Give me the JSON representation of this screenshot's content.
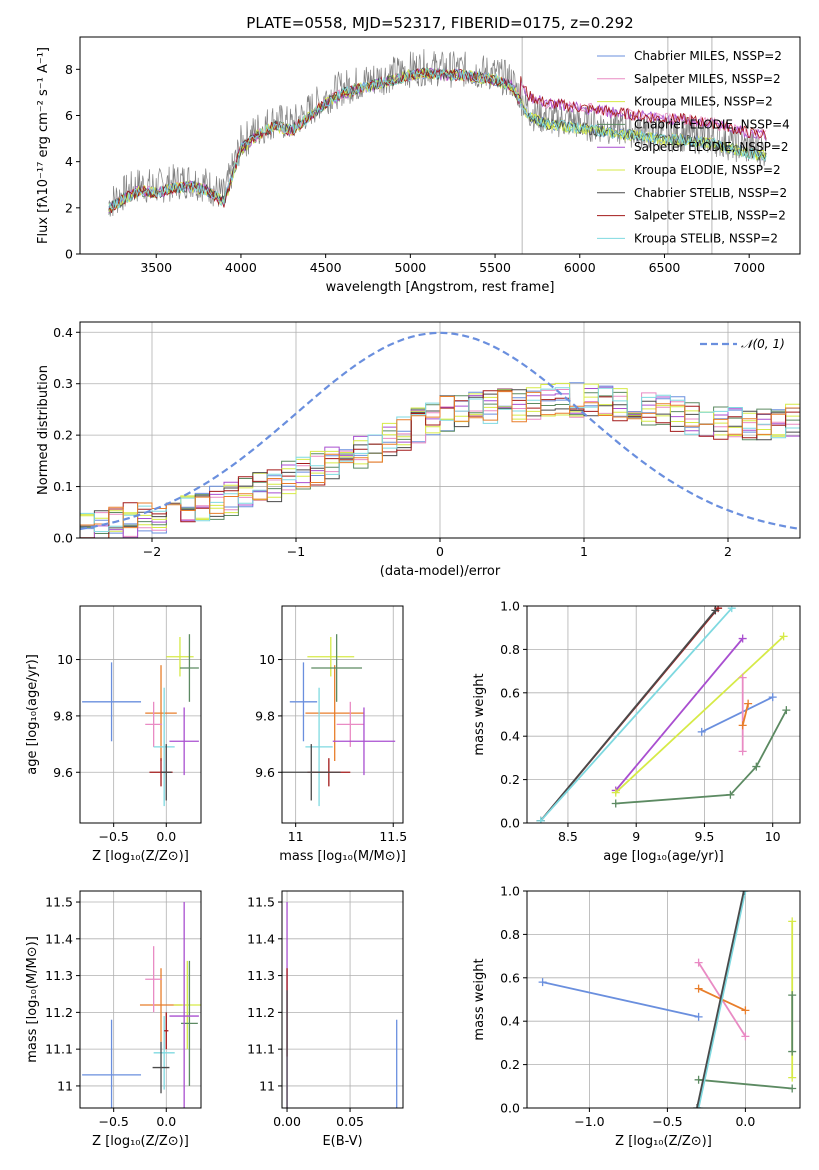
{
  "figure": {
    "title": "PLATE=0558, MJD=52317, FIBERID=0175, z=0.292"
  },
  "chart_data": [
    {
      "panel": "spectrum",
      "type": "line",
      "xlabel": "wavelength [Angstrom, rest frame]",
      "ylabel": "Flux [fλ10⁻¹⁷ erg cm⁻² s⁻¹ A⁻¹]",
      "xlim": [
        3050,
        7300
      ],
      "ylim": [
        0,
        9.4
      ],
      "xticks": [
        3500,
        4000,
        4500,
        5000,
        5500,
        6000,
        6500,
        7000
      ],
      "yticks": [
        0,
        2,
        4,
        6,
        8
      ],
      "grid": false,
      "legend_position": "top-right",
      "legend": [
        "Chabrier MILES, NSSP=2",
        "Salpeter MILES, NSSP=2",
        "Kroupa MILES, NSSP=2",
        "Chabrier ELODIE, NSSP=4",
        "Salpeter ELODIE, NSSP=2",
        "Kroupa ELODIE, NSSP=2",
        "Chabrier STELIB, NSSP=2",
        "Salpeter STELIB, NSSP=2",
        "Kroupa STELIB, NSSP=2"
      ],
      "vlines": [
        5660,
        6520,
        6780
      ],
      "data_envelope": {
        "x": [
          3220,
          3300,
          3400,
          3500,
          3600,
          3700,
          3800,
          3900,
          4000,
          4100,
          4200,
          4300,
          4400,
          4500,
          4600,
          4700,
          4800,
          4900,
          5000,
          5100,
          5200,
          5300,
          5400,
          5500,
          5600,
          5700,
          5800,
          5900,
          6000,
          6100,
          6200,
          6300,
          6400,
          6500,
          6600,
          6700,
          6800,
          6900,
          7000,
          7100
        ],
        "y": [
          2.2,
          2.6,
          3.0,
          2.9,
          3.1,
          3.2,
          3.0,
          2.5,
          4.8,
          5.4,
          5.8,
          5.6,
          6.2,
          6.8,
          7.2,
          7.4,
          7.6,
          7.8,
          8.0,
          8.1,
          8.0,
          8.0,
          7.9,
          7.8,
          7.5,
          6.2,
          5.9,
          5.8,
          5.7,
          5.6,
          5.5,
          5.4,
          5.3,
          5.2,
          5.2,
          5.1,
          5.0,
          4.8,
          4.6,
          4.5
        ]
      }
    },
    {
      "panel": "residuals",
      "type": "line",
      "xlabel": "(data-model)/error",
      "ylabel": "Normed distribution",
      "xlim": [
        -2.5,
        2.5
      ],
      "ylim": [
        0,
        0.42
      ],
      "xticks": [
        -2,
        -1,
        0,
        1,
        2
      ],
      "yticks": [
        0.0,
        0.1,
        0.2,
        0.3,
        0.4
      ],
      "grid": true,
      "legend": [
        "𝒩(0, 1)"
      ],
      "legend_position": "top-right",
      "gaussian": {
        "mu": 0,
        "sigma": 1
      },
      "histogram_bins": {
        "x": [
          -2.5,
          -2.0,
          -1.5,
          -1.0,
          -0.5,
          0.0,
          0.5,
          1.0,
          1.5,
          2.0,
          2.5
        ],
        "y": [
          0.02,
          0.04,
          0.07,
          0.12,
          0.17,
          0.24,
          0.26,
          0.27,
          0.25,
          0.22,
          0.23
        ]
      }
    },
    {
      "panel": "age-vs-Z",
      "type": "scatter",
      "xlabel": "Z [log₁₀(Z/Z⊙)]",
      "ylabel": "age  [log₁₀(age/yr)]",
      "xlim": [
        -0.82,
        0.33
      ],
      "ylim": [
        9.42,
        10.19
      ],
      "xticks": [
        -0.5,
        0.0
      ],
      "xticklabels": [
        "−0.5",
        "0.0"
      ],
      "yticks": [
        9.6,
        9.8,
        10.0
      ],
      "grid": true,
      "points": [
        {
          "x": -0.52,
          "y": 9.85,
          "xerr": 0.28,
          "yerr": 0.14,
          "color": "#6a8fde"
        },
        {
          "x": -0.05,
          "y": 9.81,
          "xerr": 0.15,
          "yerr": 0.17,
          "color": "#e87e2b"
        },
        {
          "x": -0.12,
          "y": 9.77,
          "xerr": 0.08,
          "yerr": 0.08,
          "color": "#e98bc4"
        },
        {
          "x": 0.13,
          "y": 10.01,
          "xerr": 0.13,
          "yerr": 0.07,
          "color": "#d6ea47"
        },
        {
          "x": 0.22,
          "y": 9.97,
          "xerr": 0.09,
          "yerr": 0.12,
          "color": "#5c8a62"
        },
        {
          "x": 0.17,
          "y": 9.71,
          "xerr": 0.14,
          "yerr": 0.12,
          "color": "#a94fd0"
        },
        {
          "x": -0.02,
          "y": 9.69,
          "xerr": 0.1,
          "yerr": 0.21,
          "color": "#7fd9e0"
        },
        {
          "x": -0.05,
          "y": 9.6,
          "xerr": 0.11,
          "yerr": 0.05,
          "color": "#a31a1a"
        },
        {
          "x": 0.0,
          "y": 9.6,
          "xerr": 0.05,
          "yerr": 0.1,
          "color": "#4a4a4a"
        }
      ]
    },
    {
      "panel": "age-vs-mass",
      "type": "scatter",
      "xlabel": "mass [log₁₀(M/M⊙)]",
      "ylabel": "",
      "xlim": [
        10.93,
        11.55
      ],
      "ylim": [
        9.42,
        10.19
      ],
      "xticks": [
        11.0,
        11.5
      ],
      "yticks": [
        9.6,
        9.8,
        10.0
      ],
      "grid": true,
      "points": [
        {
          "x": 11.04,
          "y": 9.85,
          "xerr": 0.07,
          "yerr": 0.14,
          "color": "#6a8fde"
        },
        {
          "x": 11.2,
          "y": 9.81,
          "xerr": 0.15,
          "yerr": 0.17,
          "color": "#e87e2b"
        },
        {
          "x": 11.28,
          "y": 9.77,
          "xerr": 0.07,
          "yerr": 0.08,
          "color": "#e98bc4"
        },
        {
          "x": 11.18,
          "y": 10.01,
          "xerr": 0.12,
          "yerr": 0.07,
          "color": "#d6ea47"
        },
        {
          "x": 11.21,
          "y": 9.97,
          "xerr": 0.13,
          "yerr": 0.12,
          "color": "#5c8a62"
        },
        {
          "x": 11.35,
          "y": 9.71,
          "xerr": 0.16,
          "yerr": 0.12,
          "color": "#a94fd0"
        },
        {
          "x": 11.12,
          "y": 9.69,
          "xerr": 0.07,
          "yerr": 0.21,
          "color": "#7fd9e0"
        },
        {
          "x": 11.17,
          "y": 9.6,
          "xerr": 0.11,
          "yerr": 0.05,
          "color": "#a31a1a"
        },
        {
          "x": 11.08,
          "y": 9.6,
          "xerr": 0.15,
          "yerr": 0.1,
          "color": "#4a4a4a"
        }
      ]
    },
    {
      "panel": "mass-weight-vs-age",
      "type": "line",
      "xlabel": "age  [log₁₀(age/yr)]",
      "ylabel": "mass weight",
      "xlim": [
        8.2,
        10.2
      ],
      "ylim": [
        0,
        1
      ],
      "xticks": [
        8.5,
        9.0,
        9.5,
        10.0
      ],
      "yticks": [
        0.0,
        0.2,
        0.4,
        0.6,
        0.8,
        1.0
      ],
      "grid": true,
      "series": [
        {
          "color": "#a31a1a",
          "x": [
            8.3,
            9.6
          ],
          "y": [
            0.01,
            0.99
          ]
        },
        {
          "color": "#4a4a4a",
          "x": [
            8.3,
            9.58
          ],
          "y": [
            0.01,
            0.98
          ]
        },
        {
          "color": "#7fd9e0",
          "x": [
            8.3,
            9.7
          ],
          "y": [
            0.01,
            0.99
          ]
        },
        {
          "color": "#a94fd0",
          "x": [
            8.85,
            9.78
          ],
          "y": [
            0.15,
            0.85
          ]
        },
        {
          "color": "#d6ea47",
          "x": [
            8.85,
            10.08
          ],
          "y": [
            0.14,
            0.86
          ]
        },
        {
          "color": "#5c8a62",
          "x": [
            8.85,
            9.69,
            9.88,
            10.1
          ],
          "y": [
            0.09,
            0.13,
            0.26,
            0.52
          ]
        },
        {
          "color": "#6a8fde",
          "x": [
            9.48,
            10.0
          ],
          "y": [
            0.42,
            0.58
          ]
        },
        {
          "color": "#e98bc4",
          "x": [
            9.78,
            9.78
          ],
          "y": [
            0.33,
            0.67
          ]
        },
        {
          "color": "#e87e2b",
          "x": [
            9.78,
            9.82
          ],
          "y": [
            0.45,
            0.55
          ]
        }
      ]
    },
    {
      "panel": "mass-vs-Z",
      "type": "scatter",
      "xlabel": "Z [log₁₀(Z/Z⊙)]",
      "ylabel": "mass [log₁₀(M/M⊙)]",
      "xlim": [
        -0.82,
        0.33
      ],
      "ylim": [
        10.94,
        11.53
      ],
      "xticks": [
        -0.5,
        0.0
      ],
      "xticklabels": [
        "−0.5",
        "0.0"
      ],
      "yticks": [
        11.0,
        11.1,
        11.2,
        11.3,
        11.4,
        11.5
      ],
      "grid": true,
      "points": [
        {
          "x": -0.52,
          "y": 11.03,
          "xerr": 0.28,
          "yerr": 0.15,
          "color": "#6a8fde"
        },
        {
          "x": -0.05,
          "y": 11.22,
          "xerr": 0.2,
          "yerr": 0.1,
          "color": "#e87e2b"
        },
        {
          "x": -0.12,
          "y": 11.29,
          "xerr": 0.08,
          "yerr": 0.09,
          "color": "#e98bc4"
        },
        {
          "x": 0.2,
          "y": 11.22,
          "xerr": 0.13,
          "yerr": 0.12,
          "color": "#d6ea47"
        },
        {
          "x": 0.22,
          "y": 11.17,
          "xerr": 0.08,
          "yerr": 0.17,
          "color": "#5c8a62"
        },
        {
          "x": 0.17,
          "y": 11.19,
          "xerr": 0.14,
          "yerr": 0.31,
          "color": "#a94fd0"
        },
        {
          "x": -0.02,
          "y": 11.09,
          "xerr": 0.1,
          "yerr": 0.1,
          "color": "#7fd9e0"
        },
        {
          "x": 0.0,
          "y": 11.15,
          "xerr": 0.02,
          "yerr": 0.05,
          "color": "#a31a1a"
        },
        {
          "x": -0.05,
          "y": 11.05,
          "xerr": 0.08,
          "yerr": 0.07,
          "color": "#4a4a4a"
        }
      ]
    },
    {
      "panel": "mass-vs-EBV",
      "type": "scatter",
      "xlabel": "E(B-V)",
      "ylabel": "",
      "xlim": [
        -0.004,
        0.092
      ],
      "ylim": [
        10.94,
        11.53
      ],
      "xticks": [
        0.0,
        0.05
      ],
      "xticklabels": [
        "0.00",
        "0.05"
      ],
      "yticks": [
        11.0,
        11.1,
        11.2,
        11.3,
        11.4,
        11.5
      ],
      "grid": true,
      "points": [
        {
          "x": 0.087,
          "y": 11.06,
          "xerr": 0.0,
          "yerr": 0.12,
          "color": "#6a8fde"
        },
        {
          "x": 0.0,
          "y": 11.22,
          "xerr": 0.0,
          "yerr": 0.28,
          "color": "#a94fd0"
        },
        {
          "x": 0.0,
          "y": 11.2,
          "xerr": 0.0,
          "yerr": 0.12,
          "color": "#a31a1a"
        },
        {
          "x": 0.0,
          "y": 11.1,
          "xerr": 0.0,
          "yerr": 0.16,
          "color": "#4a4a4a"
        }
      ]
    },
    {
      "panel": "mass-weight-vs-Z",
      "type": "line",
      "xlabel": "Z [log₁₀(Z/Z⊙)]",
      "ylabel": "mass weight",
      "xlim": [
        -1.4,
        0.35
      ],
      "ylim": [
        0,
        1
      ],
      "xticks": [
        -1.0,
        -0.5,
        0.0
      ],
      "xticklabels": [
        "−1.0",
        "−0.5",
        "0.0"
      ],
      "yticks": [
        0.0,
        0.2,
        0.4,
        0.6,
        0.8,
        1.0
      ],
      "grid": true,
      "series": [
        {
          "color": "#6a8fde",
          "x": [
            -1.3,
            -0.3
          ],
          "y": [
            0.58,
            0.42
          ]
        },
        {
          "color": "#e98bc4",
          "x": [
            -0.3,
            0.0
          ],
          "y": [
            0.67,
            0.33
          ]
        },
        {
          "color": "#e87e2b",
          "x": [
            -0.3,
            0.0
          ],
          "y": [
            0.55,
            0.45
          ]
        },
        {
          "color": "#5c8a62",
          "x": [
            -0.3,
            0.3
          ],
          "y": [
            0.13,
            0.09
          ]
        },
        {
          "color": "#7fd9e0",
          "x": [
            -0.3,
            0.0
          ],
          "y": [
            0.0,
            1.0
          ]
        },
        {
          "color": "#4a4a4a",
          "x": [
            -0.31,
            -0.01
          ],
          "y": [
            0.0,
            1.0
          ]
        },
        {
          "color": "#d6ea47",
          "x": [
            0.3,
            0.3
          ],
          "y": [
            0.14,
            0.86
          ]
        },
        {
          "color": "#5c8a62",
          "x": [
            0.3,
            0.3
          ],
          "y": [
            0.26,
            0.52
          ]
        }
      ]
    }
  ]
}
